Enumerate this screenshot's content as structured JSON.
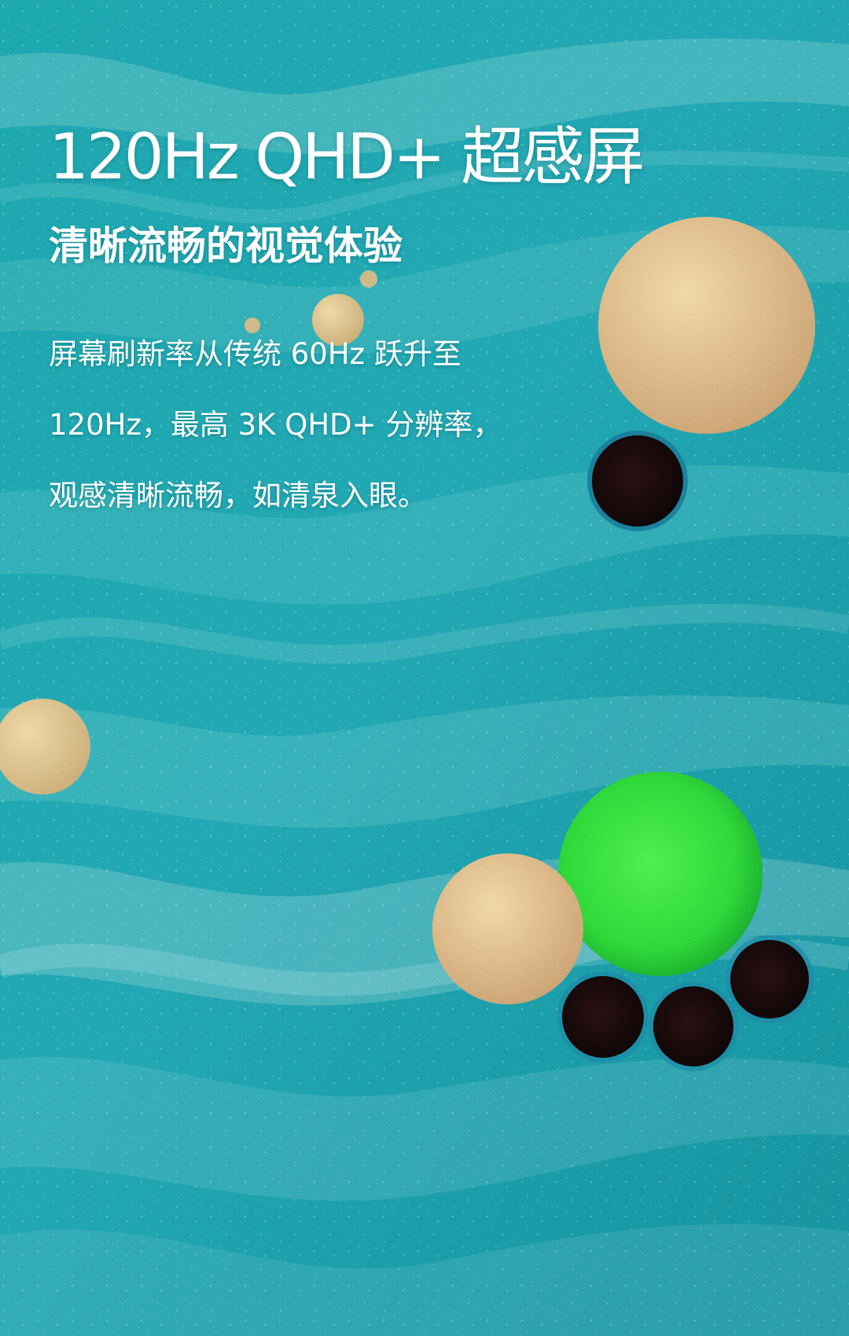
{
  "hero": {
    "title": "120Hz QHD+ 超感屏",
    "subtitle": "清晰流畅的视觉体验",
    "description_lines": [
      "屏幕刷新率从传统 60Hz 跃升至",
      "120Hz，最高 3K QHD+ 分辨率，",
      "观感清晰流畅，如清泉入眼。"
    ]
  },
  "theme": {
    "background": "#1f9fa6",
    "text": "#ffffff"
  }
}
